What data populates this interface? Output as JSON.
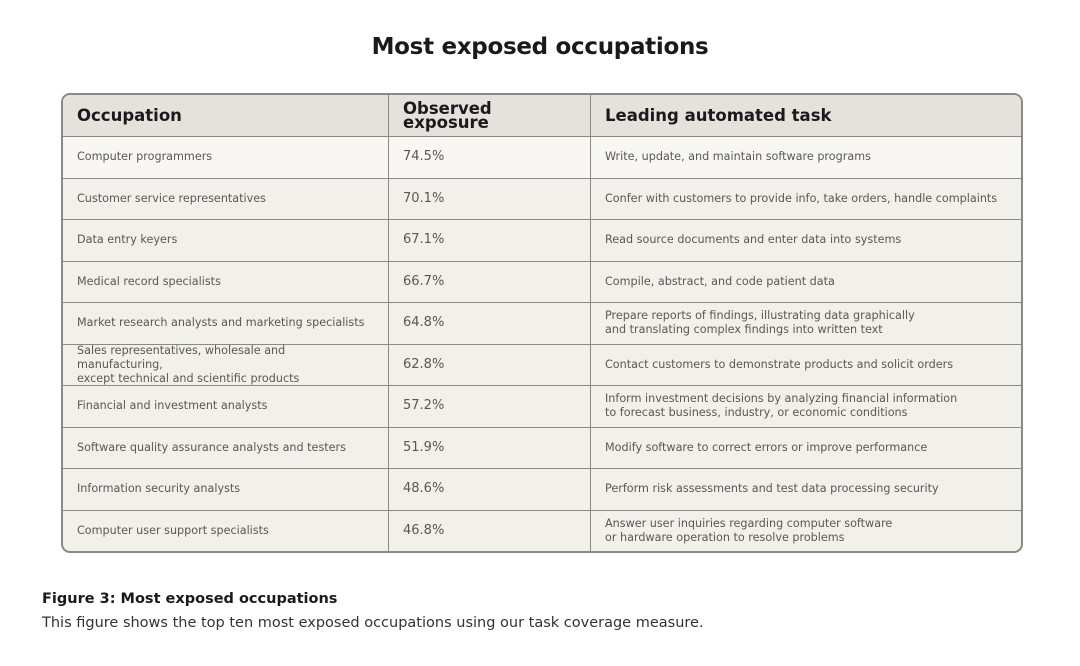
{
  "title": "Most exposed occupations",
  "table": {
    "headers": [
      "Occupation",
      "Observed exposure",
      "Leading automated task"
    ],
    "rows": [
      [
        "Computer programmers",
        "74.5%",
        "Write, update, and maintain software programs"
      ],
      [
        "Customer service representatives",
        "70.1%",
        "Confer with customers to provide info, take orders, handle complaints"
      ],
      [
        "Data entry keyers",
        "67.1%",
        "Read source documents and enter data into systems"
      ],
      [
        "Medical record specialists",
        "66.7%",
        "Compile, abstract, and code patient data"
      ],
      [
        "Market research analysts and marketing specialists",
        "64.8%",
        "Prepare reports of findings, illustrating data graphically\nand translating complex findings into written text"
      ],
      [
        "Sales representatives, wholesale and manufacturing,\nexcept technical and scientific products",
        "62.8%",
        "Contact customers to demonstrate products and solicit orders"
      ],
      [
        "Financial and investment analysts",
        "57.2%",
        "Inform investment decisions by analyzing financial information\nto forecast business, industry, or economic conditions"
      ],
      [
        "Software quality assurance analysts and testers",
        "51.9%",
        "Modify software to correct errors or improve performance"
      ],
      [
        "Information security analysts",
        "48.6%",
        "Perform risk assessments and test data processing security"
      ],
      [
        "Computer user support specialists",
        "46.8%",
        "Answer user inquiries regarding computer software\nor hardware operation to resolve problems"
      ]
    ]
  },
  "caption": {
    "label": "Figure 3: Most exposed occupations",
    "text": "This figure shows the top ten most exposed occupations using our task coverage measure."
  }
}
